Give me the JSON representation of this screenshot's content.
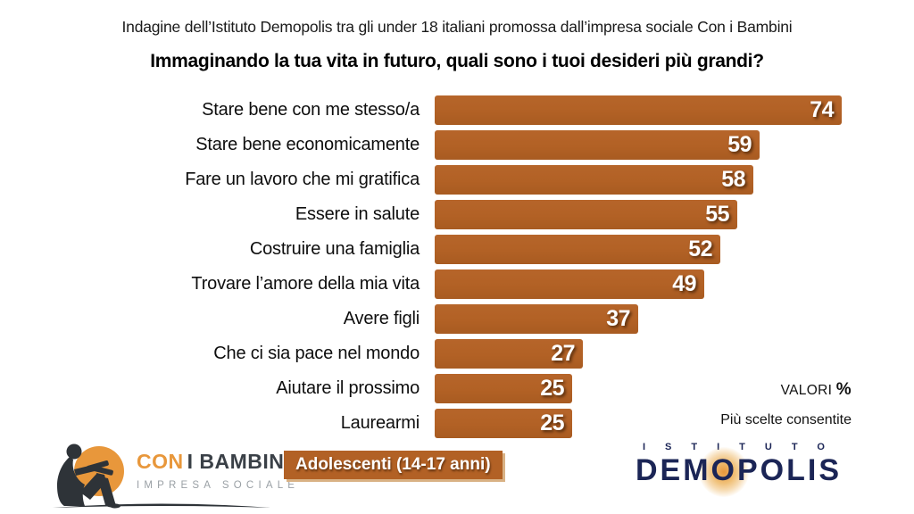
{
  "header": {
    "source_line": "Indagine dell’Istituto Demopolis tra gli under 18 italiani promossa dall’impresa sociale Con i Bambini",
    "question": "Immaginando la tua vita in futuro, quali sono i tuoi desideri più grandi?"
  },
  "chart_data": {
    "type": "bar",
    "orientation": "horizontal",
    "title": "Immaginando la tua vita in futuro, quali sono i tuoi desideri più grandi?",
    "categories": [
      "Stare bene con me stesso/a",
      "Stare bene economicamente",
      "Fare un lavoro che mi gratifica",
      "Essere in salute",
      "Costruire una famiglia",
      "Trovare l’amore della mia vita",
      "Avere figli",
      "Che ci sia pace nel mondo",
      "Aiutare il prossimo",
      "Laurearmi"
    ],
    "values": [
      74,
      59,
      58,
      55,
      52,
      49,
      37,
      27,
      25,
      25
    ],
    "unit": "%",
    "value_labels_inside_bars": true,
    "xlim": [
      0,
      80
    ],
    "grid": false,
    "legend": false,
    "notes": [
      "VALORI %",
      "Più scelte consentite"
    ]
  },
  "annotations": {
    "valori_label": "VALORI ",
    "percent_sign": "%",
    "multiple_choice_note": "Più scelte consentite"
  },
  "footer": {
    "audience_badge": "Adolescenti (14-17 anni)",
    "con_i_bambini": {
      "name_highlight": "CON",
      "name_rest": "I BAMBINI",
      "subtitle": "IMPRESA SOCIALE"
    },
    "demopolis": {
      "istituto": "ISTITUTO",
      "wordmark": "DEMOPOLIS"
    }
  },
  "colors": {
    "bar": "#B26125",
    "value-text": "#FFFFFF",
    "navy": "#1B2556",
    "orange": "#E8973B",
    "badge-shadow": "#D9B285",
    "text": "#111111",
    "gray": "#9AA0A5",
    "background": "#FFFFFF"
  }
}
